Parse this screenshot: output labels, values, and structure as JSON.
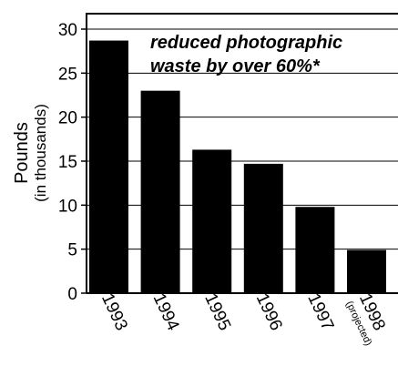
{
  "chart_data": {
    "type": "bar",
    "categories": [
      "1993",
      "1994",
      "1995",
      "1996",
      "1997",
      "1998"
    ],
    "category_sublabels": [
      "",
      "",
      "",
      "",
      "",
      "(projected)"
    ],
    "values": [
      28.7,
      23.0,
      16.3,
      14.7,
      9.8,
      4.9
    ],
    "ylabel": "Pounds",
    "ylabel_sub": "(in thousands)",
    "ylim": [
      0,
      32
    ],
    "yticks": [
      0,
      5,
      10,
      15,
      20,
      25,
      30
    ],
    "grid": true,
    "bar_color": "#000000",
    "annotation": [
      "reduced photographic",
      "waste by over 60%*"
    ]
  }
}
